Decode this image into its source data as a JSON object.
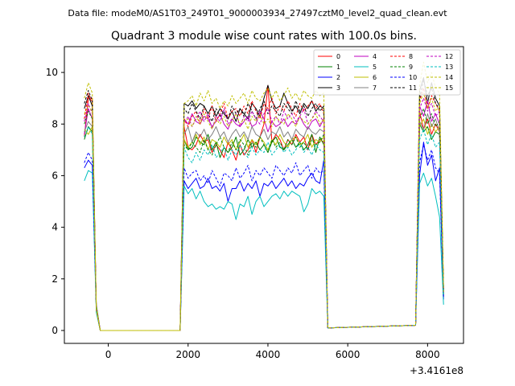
{
  "chart_data": {
    "type": "line",
    "suptitle": "Data file: modeM0/AS1T03_249T01_9000003934_27497cztM0_level2_quad_clean.evt",
    "title": "Quadrant 3 module wise count rates with 100.0s bins.",
    "xlabel": "",
    "ylabel": "",
    "x_offset_label": "+3.4161e8",
    "xlim": [
      -1100,
      8900
    ],
    "ylim": [
      -0.5,
      11
    ],
    "x_ticks": [
      0,
      2000,
      4000,
      6000,
      8000
    ],
    "x_tick_labels": [
      "0",
      "2000",
      "4000",
      "6000",
      "8000"
    ],
    "y_ticks": [
      0,
      2,
      4,
      6,
      8,
      10
    ],
    "y_tick_labels": [
      "0",
      "2",
      "4",
      "6",
      "8",
      "10"
    ],
    "grid": false,
    "legend_position": "top-right",
    "x": [
      -600,
      -500,
      -400,
      -300,
      -200,
      1800,
      1900,
      2000,
      2100,
      2200,
      2300,
      2400,
      2500,
      2600,
      2700,
      2800,
      2900,
      3000,
      3100,
      3200,
      3300,
      3400,
      3500,
      3600,
      3700,
      3800,
      3900,
      4000,
      4100,
      4200,
      4300,
      4400,
      4500,
      4600,
      4700,
      4800,
      4900,
      5000,
      5100,
      5200,
      5300,
      5400,
      5500,
      7700,
      7800,
      7900,
      8000,
      8100,
      8200,
      8300,
      8400
    ],
    "gaps_after_index": [
      4,
      42
    ],
    "series": [
      {
        "name": "0",
        "color": "#ff0000",
        "dash": false,
        "active": [
          7.5,
          9.0,
          9.0,
          0.8,
          0.0,
          0.0,
          7.9,
          7.1,
          7.0,
          7.2,
          7.6,
          7.3,
          7.4,
          6.9,
          7.2,
          7.0,
          6.7,
          7.3,
          7.0,
          6.6,
          7.2,
          6.8,
          7.0,
          7.4,
          6.9,
          7.5,
          8.0,
          9.5,
          7.3,
          7.6,
          7.4,
          7.0,
          7.4,
          7.2,
          7.6,
          7.3,
          7.5,
          7.0,
          7.6,
          7.2,
          7.4,
          7.3,
          0.1,
          0.2,
          8.5,
          7.8,
          8.2,
          7.6,
          8.0,
          7.7,
          1.3
        ]
      },
      {
        "name": "1",
        "color": "#008000",
        "dash": false,
        "active": [
          7.4,
          7.9,
          7.7,
          1.0,
          0.0,
          0.0,
          7.4,
          7.0,
          7.1,
          7.5,
          7.3,
          7.2,
          7.6,
          7.0,
          7.3,
          6.7,
          7.1,
          6.9,
          7.1,
          7.5,
          6.8,
          7.0,
          7.4,
          7.1,
          7.3,
          7.0,
          7.2,
          6.9,
          7.3,
          7.5,
          7.1,
          7.0,
          7.2,
          7.4,
          7.1,
          7.3,
          7.0,
          7.2,
          7.6,
          6.9,
          7.5,
          7.2,
          0.1,
          0.2,
          8.0,
          7.7,
          7.9,
          7.4,
          7.7,
          7.6,
          1.4
        ]
      },
      {
        "name": "2",
        "color": "#0000ff",
        "dash": false,
        "active": [
          6.3,
          6.6,
          6.4,
          0.8,
          0.0,
          0.0,
          5.8,
          5.5,
          5.7,
          5.9,
          5.5,
          5.6,
          5.9,
          5.5,
          5.6,
          5.4,
          5.7,
          5.0,
          5.5,
          5.5,
          5.8,
          5.4,
          5.7,
          5.5,
          5.8,
          5.2,
          5.7,
          5.6,
          5.8,
          5.5,
          5.7,
          5.9,
          5.6,
          5.8,
          5.5,
          5.7,
          5.6,
          5.9,
          6.1,
          5.8,
          5.7,
          6.6,
          0.1,
          0.2,
          6.0,
          7.3,
          6.4,
          6.8,
          5.8,
          6.3,
          1.2
        ]
      },
      {
        "name": "3",
        "color": "#000000",
        "dash": false,
        "active": [
          8.6,
          9.1,
          8.7,
          0.8,
          0.0,
          0.0,
          8.8,
          8.7,
          8.9,
          8.6,
          8.8,
          8.7,
          8.4,
          8.7,
          8.3,
          8.6,
          8.4,
          8.2,
          8.5,
          8.1,
          8.6,
          8.4,
          8.2,
          8.8,
          8.6,
          8.3,
          9.0,
          9.5,
          8.9,
          8.6,
          8.7,
          9.2,
          8.8,
          8.5,
          8.7,
          8.4,
          8.8,
          8.6,
          8.9,
          8.5,
          8.7,
          8.6,
          0.1,
          0.2,
          9.3,
          9.8,
          8.8,
          9.6,
          9.0,
          8.7,
          1.6
        ]
      },
      {
        "name": "4",
        "color": "#bf00bf",
        "dash": false,
        "active": [
          7.6,
          8.6,
          8.2,
          0.9,
          0.0,
          0.0,
          8.2,
          8.0,
          8.4,
          8.1,
          8.0,
          8.3,
          8.2,
          7.9,
          8.1,
          8.4,
          8.0,
          7.8,
          8.2,
          8.0,
          7.9,
          8.1,
          8.3,
          7.9,
          8.0,
          8.5,
          8.2,
          7.7,
          8.1,
          7.9,
          8.0,
          8.2,
          7.9,
          8.1,
          8.0,
          8.3,
          8.0,
          7.8,
          8.1,
          8.2,
          7.9,
          8.2,
          0.1,
          0.2,
          8.7,
          8.3,
          8.9,
          8.1,
          8.4,
          8.0,
          1.5
        ]
      },
      {
        "name": "5",
        "color": "#00bfbf",
        "dash": false,
        "active": [
          5.8,
          6.2,
          6.1,
          0.7,
          0.0,
          0.0,
          5.6,
          5.3,
          5.5,
          5.1,
          5.4,
          5.0,
          4.8,
          4.9,
          4.7,
          4.8,
          4.7,
          5.0,
          4.9,
          4.3,
          4.9,
          4.8,
          5.2,
          4.5,
          5.0,
          5.2,
          4.8,
          5.0,
          5.2,
          5.3,
          5.1,
          5.4,
          5.2,
          5.4,
          5.3,
          5.2,
          4.6,
          4.9,
          5.5,
          5.3,
          5.4,
          5.2,
          0.1,
          0.2,
          5.7,
          6.1,
          5.6,
          5.9,
          5.2,
          4.4,
          1.0
        ]
      },
      {
        "name": "6",
        "color": "#bfbf00",
        "dash": false,
        "active": [
          7.8,
          7.6,
          7.9,
          0.9,
          0.0,
          0.0,
          7.4,
          7.1,
          7.3,
          7.6,
          7.2,
          7.5,
          7.0,
          7.4,
          7.3,
          7.1,
          7.5,
          7.2,
          7.4,
          7.0,
          7.3,
          7.6,
          7.1,
          7.4,
          7.2,
          7.5,
          7.3,
          7.0,
          7.4,
          7.2,
          7.6,
          7.3,
          7.1,
          7.4,
          7.5,
          7.2,
          7.3,
          7.6,
          7.1,
          7.4,
          7.3,
          7.5,
          0.1,
          0.2,
          7.9,
          8.2,
          7.6,
          8.0,
          7.7,
          7.9,
          1.4
        ]
      },
      {
        "name": "7",
        "color": "#808080",
        "dash": false,
        "active": [
          7.7,
          8.1,
          7.9,
          0.9,
          0.0,
          0.0,
          7.6,
          7.9,
          7.3,
          7.7,
          7.5,
          7.8,
          7.4,
          7.6,
          7.9,
          7.5,
          7.7,
          7.3,
          7.6,
          7.8,
          7.5,
          7.7,
          7.4,
          7.9,
          7.6,
          7.5,
          7.8,
          7.4,
          7.7,
          7.6,
          7.9,
          7.5,
          7.7,
          7.4,
          7.8,
          7.6,
          7.5,
          7.9,
          7.7,
          7.6,
          7.8,
          7.7,
          0.1,
          0.2,
          8.1,
          7.8,
          8.4,
          7.9,
          8.2,
          7.7,
          1.5
        ]
      },
      {
        "name": "8",
        "color": "#ff0000",
        "dash": true,
        "active": [
          8.2,
          9.2,
          8.8,
          0.8,
          0.0,
          0.0,
          8.2,
          7.9,
          8.3,
          8.5,
          8.0,
          8.6,
          8.2,
          8.7,
          8.1,
          8.4,
          8.8,
          8.2,
          8.5,
          8.6,
          8.3,
          8.7,
          8.4,
          8.9,
          8.5,
          8.2,
          8.8,
          8.6,
          9.0,
          8.4,
          8.7,
          8.5,
          8.9,
          8.6,
          8.3,
          8.8,
          8.5,
          8.7,
          8.9,
          8.6,
          8.8,
          8.4,
          0.1,
          0.2,
          8.9,
          9.4,
          8.6,
          9.1,
          8.8,
          8.5,
          1.6
        ]
      },
      {
        "name": "9",
        "color": "#008000",
        "dash": true,
        "active": [
          8.0,
          8.5,
          8.2,
          0.8,
          0.0,
          0.0,
          7.2,
          7.0,
          7.3,
          7.1,
          6.9,
          7.4,
          7.0,
          6.8,
          7.2,
          7.5,
          7.1,
          6.9,
          7.3,
          7.0,
          7.4,
          7.2,
          6.8,
          7.3,
          7.1,
          7.5,
          7.2,
          6.9,
          7.4,
          7.1,
          7.3,
          7.0,
          7.4,
          7.2,
          7.5,
          7.1,
          7.3,
          7.0,
          7.4,
          7.2,
          7.3,
          7.6,
          0.1,
          0.2,
          8.2,
          8.6,
          8.0,
          8.4,
          7.9,
          8.1,
          1.5
        ]
      },
      {
        "name": "10",
        "color": "#0000ff",
        "dash": true,
        "active": [
          6.5,
          6.9,
          6.6,
          0.8,
          0.0,
          0.0,
          6.3,
          5.9,
          6.1,
          6.2,
          5.8,
          6.0,
          5.7,
          6.2,
          5.9,
          5.6,
          6.1,
          6.0,
          5.8,
          6.3,
          5.9,
          6.1,
          6.4,
          5.8,
          6.2,
          6.0,
          6.3,
          6.1,
          5.9,
          6.4,
          6.2,
          6.0,
          6.3,
          6.1,
          6.5,
          6.0,
          6.2,
          6.4,
          5.9,
          6.3,
          6.1,
          6.2,
          0.1,
          0.2,
          6.5,
          7.2,
          6.6,
          7.0,
          6.3,
          6.1,
          1.3
        ]
      },
      {
        "name": "11",
        "color": "#000000",
        "dash": true,
        "active": [
          8.8,
          9.3,
          8.9,
          0.8,
          0.0,
          0.0,
          8.6,
          8.4,
          8.8,
          8.5,
          8.2,
          8.7,
          8.4,
          8.1,
          8.6,
          8.3,
          8.5,
          8.2,
          8.7,
          8.4,
          8.6,
          8.3,
          8.8,
          8.5,
          8.2,
          8.6,
          8.9,
          8.4,
          8.7,
          8.5,
          8.3,
          8.8,
          8.6,
          8.4,
          8.9,
          8.5,
          8.7,
          8.3,
          8.6,
          8.8,
          8.5,
          8.7,
          0.1,
          0.2,
          9.0,
          9.7,
          9.1,
          9.4,
          8.8,
          8.6,
          1.6
        ]
      },
      {
        "name": "12",
        "color": "#bf00bf",
        "dash": true,
        "active": [
          8.1,
          8.8,
          8.4,
          0.9,
          0.0,
          0.0,
          8.0,
          8.3,
          7.9,
          8.2,
          8.5,
          8.1,
          8.4,
          7.8,
          8.3,
          8.1,
          8.6,
          8.0,
          8.2,
          8.4,
          7.9,
          8.3,
          8.1,
          8.5,
          8.2,
          8.0,
          8.4,
          8.6,
          8.1,
          8.3,
          8.0,
          8.5,
          8.2,
          8.4,
          8.1,
          8.3,
          8.6,
          8.0,
          8.2,
          8.5,
          8.3,
          8.1,
          0.1,
          0.2,
          8.6,
          9.0,
          8.5,
          8.8,
          8.3,
          8.5,
          1.5
        ]
      },
      {
        "name": "13",
        "color": "#00bfbf",
        "dash": true,
        "active": [
          7.5,
          7.9,
          7.6,
          0.8,
          0.0,
          0.0,
          7.1,
          6.7,
          6.5,
          6.9,
          6.6,
          7.0,
          6.8,
          7.2,
          6.7,
          6.9,
          7.1,
          6.6,
          7.0,
          6.8,
          7.2,
          6.9,
          6.7,
          7.1,
          6.8,
          7.0,
          6.9,
          7.3,
          6.8,
          7.0,
          7.2,
          6.9,
          7.1,
          6.8,
          7.0,
          7.3,
          6.9,
          7.1,
          6.8,
          7.2,
          7.0,
          6.9,
          0.1,
          0.2,
          7.4,
          7.8,
          7.2,
          7.6,
          7.1,
          7.3,
          1.4
        ]
      },
      {
        "name": "14",
        "color": "#bfbf00",
        "dash": true,
        "active": [
          9.0,
          9.6,
          9.2,
          0.9,
          0.0,
          0.0,
          8.8,
          8.9,
          9.1,
          8.7,
          9.2,
          8.9,
          9.3,
          8.8,
          9.0,
          8.6,
          8.9,
          8.7,
          9.1,
          8.8,
          9.0,
          9.2,
          8.8,
          9.3,
          9.0,
          8.9,
          9.2,
          9.4,
          9.0,
          9.3,
          8.9,
          9.1,
          9.4,
          9.0,
          9.2,
          8.9,
          9.3,
          9.1,
          9.0,
          9.3,
          9.1,
          9.2,
          0.1,
          0.2,
          9.5,
          10.4,
          9.6,
          10.0,
          9.4,
          9.2,
          1.7
        ]
      },
      {
        "name": "15",
        "color": "#bfbf00",
        "dash": true,
        "active": [
          8.4,
          8.7,
          8.5,
          0.8,
          0.0,
          0.0,
          8.1,
          8.2,
          7.9,
          8.3,
          8.0,
          8.4,
          8.1,
          7.8,
          8.2,
          8.0,
          8.3,
          7.9,
          8.1,
          8.4,
          8.0,
          8.2,
          7.8,
          8.3,
          8.1,
          8.4,
          8.0,
          8.2,
          7.9,
          8.3,
          8.1,
          8.0,
          8.4,
          8.2,
          7.9,
          8.3,
          8.1,
          8.0,
          8.2,
          8.4,
          8.0,
          8.2,
          0.1,
          0.2,
          8.8,
          9.2,
          8.6,
          9.0,
          8.5,
          8.7,
          1.5
        ]
      }
    ]
  }
}
